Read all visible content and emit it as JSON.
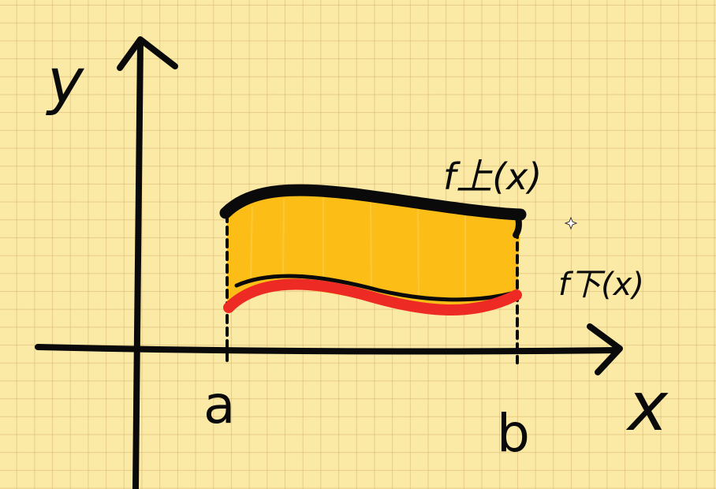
{
  "labels": {
    "y_axis": "y",
    "x_axis": "x",
    "point_a": "a",
    "point_b": "b",
    "upper_curve": "f上(x)",
    "lower_curve": "f下(x)"
  },
  "colors": {
    "background": "#fbe9a6",
    "grid": "#d6b46e",
    "region_fill": "#fdbd17",
    "upper_curve": "#0a0a0a",
    "lower_curve": "#ee2a24",
    "axes": "#0a0a0a"
  },
  "icons": [
    "sparkle-icon"
  ]
}
